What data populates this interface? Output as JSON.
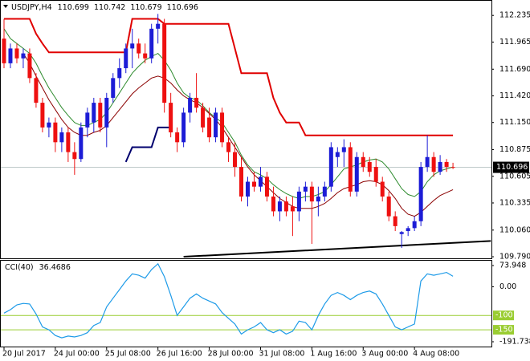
{
  "chart_data": [
    {
      "type": "candlestick",
      "title": "USDJPY,H4",
      "open": [
        112.0,
        111.75,
        111.9,
        111.8,
        111.85,
        111.6,
        111.35,
        111.1,
        111.15,
        110.95,
        111.05,
        110.85,
        110.78,
        111.1,
        111.15,
        111.35,
        111.1,
        111.4,
        111.6,
        111.7,
        111.9,
        111.95,
        111.85,
        111.8,
        112.1,
        112.15,
        111.35,
        111.05,
        110.95,
        111.25,
        111.4,
        111.3,
        111.2,
        111.0,
        111.25,
        110.95,
        110.85,
        110.7,
        110.4,
        110.55,
        110.5,
        110.6,
        110.4,
        110.25,
        110.35,
        110.3,
        110.25,
        110.45,
        110.5,
        110.35,
        110.4,
        110.5,
        110.8,
        110.85,
        110.9,
        110.45,
        110.8,
        110.75,
        110.7,
        110.55,
        110.4,
        110.2,
        110.02,
        110.05,
        110.08,
        110.15,
        110.7,
        110.8,
        110.65,
        110.75,
        110.699
      ],
      "high": [
        112.2,
        111.95,
        111.95,
        111.9,
        111.9,
        111.65,
        111.4,
        111.2,
        111.2,
        111.1,
        111.1,
        110.95,
        111.15,
        111.3,
        111.4,
        111.4,
        111.45,
        111.65,
        111.8,
        111.95,
        112.1,
        112.0,
        111.95,
        112.15,
        112.25,
        112.2,
        111.45,
        111.1,
        111.3,
        111.45,
        111.65,
        111.35,
        111.3,
        111.3,
        111.3,
        111.0,
        110.95,
        110.8,
        110.6,
        110.65,
        110.7,
        110.65,
        110.5,
        110.4,
        110.4,
        110.4,
        110.5,
        110.55,
        110.55,
        110.5,
        110.55,
        110.95,
        110.9,
        110.98,
        110.95,
        110.85,
        110.85,
        110.8,
        110.78,
        110.6,
        110.45,
        110.25,
        110.05,
        110.1,
        110.2,
        110.75,
        111.02,
        110.85,
        110.82,
        110.78,
        110.742
      ],
      "low": [
        111.7,
        111.7,
        111.75,
        111.7,
        111.55,
        111.3,
        111.05,
        111.0,
        110.85,
        110.85,
        110.75,
        110.62,
        110.75,
        111.0,
        111.05,
        111.05,
        110.9,
        111.35,
        111.5,
        111.65,
        111.7,
        111.8,
        111.75,
        111.75,
        111.95,
        111.25,
        111.0,
        110.85,
        110.9,
        111.15,
        111.25,
        111.05,
        110.95,
        110.95,
        110.9,
        110.75,
        110.6,
        110.35,
        110.3,
        110.45,
        110.45,
        110.35,
        110.2,
        110.15,
        110.2,
        110.0,
        110.15,
        110.35,
        109.92,
        110.2,
        110.35,
        110.45,
        110.7,
        110.7,
        110.4,
        110.4,
        110.65,
        110.6,
        110.5,
        110.35,
        110.15,
        110.05,
        109.88,
        110.0,
        110.05,
        110.1,
        110.65,
        110.6,
        110.62,
        110.65,
        110.679
      ],
      "close": [
        111.75,
        111.9,
        111.8,
        111.85,
        111.6,
        111.35,
        111.1,
        111.15,
        110.95,
        111.05,
        110.85,
        110.78,
        111.1,
        111.25,
        111.35,
        111.1,
        111.4,
        111.6,
        111.7,
        111.9,
        111.95,
        111.85,
        111.8,
        112.1,
        112.15,
        111.35,
        111.05,
        110.95,
        111.25,
        111.4,
        111.3,
        111.1,
        111.0,
        111.25,
        110.95,
        110.85,
        110.7,
        110.4,
        110.55,
        110.5,
        110.6,
        110.4,
        110.25,
        110.35,
        110.25,
        110.25,
        110.45,
        110.5,
        110.35,
        110.4,
        110.5,
        110.9,
        110.85,
        110.9,
        110.45,
        110.8,
        110.7,
        110.65,
        110.55,
        110.4,
        110.2,
        110.1,
        110.04,
        110.08,
        110.15,
        110.7,
        110.8,
        110.65,
        110.75,
        110.7,
        110.696
      ],
      "bull_color": "#1c1cd6",
      "bear_color": "#ee1010",
      "lines": [
        {
          "color": "#2e8b2e",
          "values": [
            112.1,
            112.0,
            111.95,
            111.9,
            111.85,
            111.75,
            111.62,
            111.5,
            111.4,
            111.3,
            111.22,
            111.15,
            111.12,
            111.12,
            111.15,
            111.18,
            111.25,
            111.35,
            111.45,
            111.55,
            111.65,
            111.72,
            111.78,
            111.82,
            111.85,
            111.78,
            111.68,
            111.55,
            111.45,
            111.4,
            111.38,
            111.32,
            111.25,
            111.2,
            111.15,
            111.05,
            110.95,
            110.82,
            110.72,
            110.65,
            110.62,
            110.58,
            110.52,
            110.47,
            110.43,
            110.4,
            110.38,
            110.4,
            110.4,
            110.42,
            110.45,
            110.52,
            110.6,
            110.68,
            110.7,
            110.72,
            110.75,
            110.77,
            110.78,
            110.75,
            110.68,
            110.58,
            110.48,
            110.42,
            110.4,
            110.45,
            110.55,
            110.62,
            110.66,
            110.68,
            110.7
          ]
        },
        {
          "color": "#8b0000",
          "values": [
            null,
            null,
            null,
            111.85,
            111.75,
            111.62,
            111.5,
            111.38,
            111.28,
            111.18,
            111.1,
            111.05,
            111.02,
            111.02,
            111.05,
            111.07,
            111.12,
            111.2,
            111.28,
            111.36,
            111.44,
            111.5,
            111.55,
            111.6,
            111.62,
            111.6,
            111.55,
            111.48,
            111.42,
            111.38,
            111.35,
            111.3,
            111.24,
            111.18,
            111.1,
            111.0,
            110.9,
            110.8,
            110.7,
            110.62,
            110.56,
            110.5,
            110.44,
            110.38,
            110.34,
            110.3,
            110.28,
            110.28,
            110.28,
            110.3,
            110.33,
            110.38,
            110.44,
            110.48,
            110.5,
            110.52,
            110.55,
            110.56,
            110.55,
            110.52,
            110.46,
            110.38,
            110.28,
            110.22,
            110.2,
            110.24,
            110.3,
            110.36,
            110.41,
            110.44,
            110.47
          ]
        },
        {
          "color": "#e00000",
          "width": 2,
          "values": [
            112.2,
            112.2,
            112.2,
            112.2,
            112.2,
            112.05,
            111.95,
            111.86,
            111.86,
            111.86,
            111.86,
            111.86,
            111.86,
            111.86,
            111.86,
            111.86,
            111.86,
            111.86,
            111.86,
            111.86,
            112.2,
            112.2,
            112.2,
            112.2,
            112.2,
            112.15,
            112.15,
            112.15,
            112.15,
            112.15,
            112.15,
            112.15,
            112.15,
            112.15,
            112.15,
            112.15,
            111.9,
            111.65,
            111.65,
            111.65,
            111.65,
            111.65,
            111.4,
            111.25,
            111.15,
            111.15,
            111.15,
            111.02,
            111.02,
            111.02,
            111.02,
            111.02,
            111.02,
            111.02,
            111.02,
            111.02,
            111.02,
            111.02,
            111.02,
            111.02,
            111.02,
            111.02,
            111.02,
            111.02,
            111.02,
            111.02,
            111.02,
            111.02,
            111.02,
            111.02,
            111.02
          ]
        },
        {
          "color": "#00006e",
          "width": 2,
          "values": [
            null,
            null,
            null,
            null,
            null,
            null,
            null,
            null,
            null,
            null,
            null,
            null,
            null,
            null,
            null,
            null,
            null,
            null,
            null,
            110.75,
            110.9,
            110.9,
            110.9,
            110.9,
            111.1,
            111.1,
            111.1,
            null,
            null,
            null,
            null,
            null,
            null,
            null,
            null,
            null,
            null,
            null,
            null,
            null,
            null,
            null,
            null,
            null,
            null,
            null,
            null,
            null,
            null,
            null,
            null,
            null,
            null,
            null,
            null,
            null,
            null,
            null,
            null,
            null,
            null,
            null,
            null,
            null,
            null,
            null,
            null,
            null,
            null,
            null,
            null
          ]
        }
      ],
      "trendline": {
        "x": [
          28,
          75.9
        ],
        "values": [
          109.79,
          109.95
        ],
        "color": "#000000"
      },
      "xlim": [
        -0.5,
        76
      ],
      "ylim": [
        109.774,
        112.383
      ],
      "xticks": [
        {
          "value": 0,
          "label": "20 Jul 2017"
        },
        {
          "value": 8,
          "label": "24 Jul 00:00"
        },
        {
          "value": 16,
          "label": "25 Jul 08:00"
        },
        {
          "value": 24,
          "label": "26 Jul 16:00"
        },
        {
          "value": 32,
          "label": "28 Jul 00:00"
        },
        {
          "value": 40,
          "label": "31 Jul 08:00"
        },
        {
          "value": 48,
          "label": "1 Aug 16:00"
        },
        {
          "value": 56,
          "label": "3 Aug 00:00"
        },
        {
          "value": 64,
          "label": "4 Aug 08:00"
        }
      ],
      "yticks": [
        112.235,
        111.965,
        {
          "value": 111.69,
          "label": "111.690"
        },
        {
          "value": 111.42,
          "label": "111.420"
        },
        {
          "value": 111.15,
          "label": "111.150"
        },
        110.875,
        110.605,
        110.335,
        {
          "value": 110.06,
          "label": "110.060"
        },
        {
          "value": 109.79,
          "label": "109.790"
        }
      ]
    },
    {
      "type": "line",
      "title": "CCI(40)",
      "color": "#1e9be8",
      "values": [
        -92,
        -80,
        -63,
        -58,
        -60,
        -95,
        -140,
        -150,
        -170,
        -178,
        -172,
        -175,
        -170,
        -160,
        -135,
        -125,
        -70,
        -40,
        -10,
        20,
        45,
        40,
        30,
        60,
        80,
        35,
        -30,
        -100,
        -70,
        -40,
        -25,
        -40,
        -50,
        -60,
        -90,
        -110,
        -130,
        -165,
        -150,
        -140,
        -125,
        -150,
        -160,
        -150,
        -165,
        -155,
        -120,
        -125,
        -150,
        -100,
        -60,
        -30,
        -20,
        -30,
        -45,
        -30,
        -20,
        -15,
        -25,
        -60,
        -100,
        -140,
        -150,
        -140,
        -130,
        20,
        45,
        40,
        45,
        50,
        36.4686
      ],
      "ylim": [
        -191.7381,
        73.948
      ],
      "yticks": [
        73.948,
        {
          "value": 0,
          "label": "0.00"
        },
        -191.7381
      ],
      "levels": [
        {
          "value": -100,
          "label": "-100"
        },
        {
          "value": -150,
          "label": "-150"
        }
      ],
      "level_color": "#9acd32"
    }
  ]
}
